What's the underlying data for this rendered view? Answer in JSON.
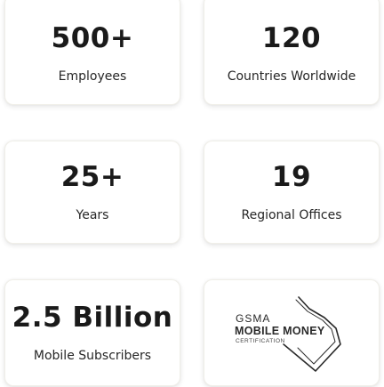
{
  "stats": [
    {
      "value": "500+",
      "label": "Employees"
    },
    {
      "value": "120",
      "label": "Countries Worldwide"
    },
    {
      "value": "25+",
      "label": "Years"
    },
    {
      "value": "19",
      "label": "Regional Offices"
    },
    {
      "value": "2.5 Billion",
      "label": "Mobile Subscribers"
    }
  ],
  "certification": {
    "org": "GSMA",
    "title": "MOBILE MONEY",
    "subtitle": "CERTIFICATION",
    "icon": "checkmark-icon"
  },
  "colors": {
    "card_background": "#ffffff",
    "text": "#1a1a1a"
  }
}
